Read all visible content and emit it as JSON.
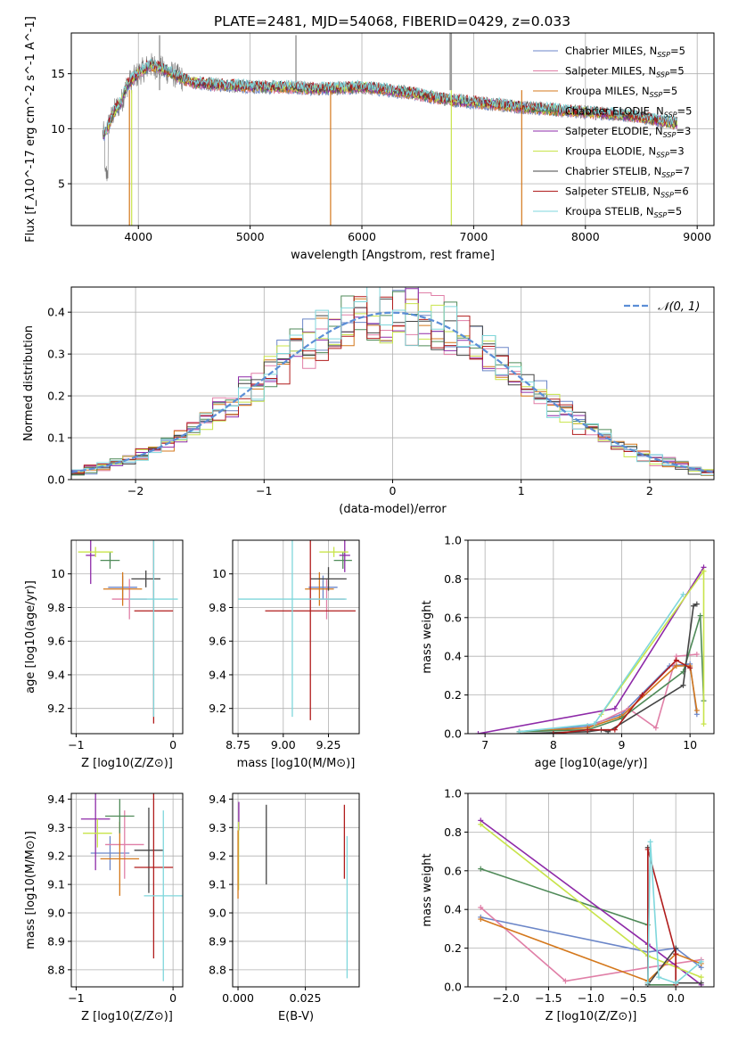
{
  "title": "PLATE=2481, MJD=54068, FIBERID=0429, z=0.033",
  "colors": {
    "chabrier_miles": "#6b86c8",
    "salpeter_miles": "#e07fa7",
    "kroupa_miles": "#d4781c",
    "chabrier_elodie": "#4f8a58",
    "salpeter_elodie": "#8e2aa8",
    "kroupa_elodie": "#c8e44a",
    "chabrier_stelib": "#444444",
    "salpeter_stelib": "#b01c1c",
    "kroupa_stelib": "#7fd7dc",
    "gauss": "#5b8ed6",
    "grid": "#b0b0b0"
  },
  "legend_spectrum": [
    {
      "name": "Chabrier MILES",
      "n": "5",
      "color_key": "chabrier_miles"
    },
    {
      "name": "Salpeter MILES",
      "n": "5",
      "color_key": "salpeter_miles"
    },
    {
      "name": "Kroupa MILES",
      "n": "5",
      "color_key": "kroupa_miles"
    },
    {
      "name": "Chabrier ELODIE",
      "n": "5",
      "color_key": "chabrier_elodie"
    },
    {
      "name": "Salpeter ELODIE",
      "n": "3",
      "color_key": "salpeter_elodie"
    },
    {
      "name": "Kroupa ELODIE",
      "n": "3",
      "color_key": "kroupa_elodie"
    },
    {
      "name": "Chabrier STELIB",
      "n": "7",
      "color_key": "chabrier_stelib"
    },
    {
      "name": "Salpeter STELIB",
      "n": "6",
      "color_key": "salpeter_stelib"
    },
    {
      "name": "Kroupa STELIB",
      "n": "5",
      "color_key": "kroupa_stelib"
    }
  ],
  "chart_data": [
    {
      "id": "spectrum",
      "type": "line",
      "xlabel": "wavelength [Angstrom, rest frame]",
      "ylabel": "Flux [f_λ10^-17 erg cm^-2 s^-1 A^-1]",
      "xlim": [
        3400,
        9150
      ],
      "ylim": [
        1.2,
        18.7
      ],
      "xticks": [
        4000,
        5000,
        6000,
        7000,
        8000,
        9000
      ],
      "yticks": [
        5,
        10,
        15
      ],
      "continuum": {
        "x": [
          3700,
          3780,
          3850,
          3900,
          3950,
          4000,
          4100,
          4200,
          4300,
          4400,
          4500,
          4700,
          5000,
          5300,
          5600,
          6000,
          6400,
          6800,
          7200,
          7600,
          8000,
          8400,
          8800
        ],
        "y": [
          9.5,
          11.5,
          12.5,
          14.0,
          14.5,
          15.0,
          15.8,
          15.5,
          15.0,
          14.5,
          14.2,
          14.0,
          13.8,
          13.8,
          13.6,
          13.8,
          13.3,
          12.6,
          12.2,
          11.8,
          11.5,
          11.2,
          10.5
        ]
      }
    },
    {
      "id": "residual_hist",
      "type": "bar",
      "xlabel": "(data-model)/error",
      "ylabel": "Normed distribution",
      "xlim": [
        -2.5,
        2.5
      ],
      "ylim": [
        0,
        0.46
      ],
      "xticks": [
        -2,
        -1,
        0,
        1,
        2
      ],
      "yticks": [
        0.0,
        0.1,
        0.2,
        0.3,
        0.4
      ],
      "legend": "𝒩(0, 1)",
      "bin_width": 0.1
    },
    {
      "id": "age_vs_Z",
      "type": "scatter",
      "xlabel": "Z [log10(Z/Z⊙)]",
      "ylabel": "age  [log10(age/yr)]",
      "xlim": [
        -1.05,
        0.1
      ],
      "ylim": [
        9.05,
        10.2
      ],
      "xticks": [
        -1,
        0
      ],
      "yticks": [
        9.2,
        9.4,
        9.6,
        9.8,
        10.0
      ],
      "points": [
        {
          "series": "chabrier_miles",
          "x": -0.52,
          "y": 9.92,
          "xerr": 0.15,
          "yerr": 0.07
        },
        {
          "series": "salpeter_miles",
          "x": -0.45,
          "y": 9.85,
          "xerr": 0.18,
          "yerr": 0.12
        },
        {
          "series": "kroupa_miles",
          "x": -0.52,
          "y": 9.91,
          "xerr": 0.2,
          "yerr": 0.1
        },
        {
          "series": "chabrier_elodie",
          "x": -0.65,
          "y": 10.08,
          "xerr": 0.1,
          "yerr": 0.05
        },
        {
          "series": "salpeter_elodie",
          "x": -0.85,
          "y": 10.11,
          "xerr": 0.05,
          "yerr": 0.17
        },
        {
          "series": "kroupa_elodie",
          "x": -0.8,
          "y": 10.13,
          "xerr": 0.18,
          "yerr": 0.03
        },
        {
          "series": "chabrier_stelib",
          "x": -0.28,
          "y": 9.97,
          "xerr": 0.15,
          "yerr": 0.05
        },
        {
          "series": "salpeter_stelib",
          "x": -0.2,
          "y": 9.78,
          "xerr": 0.2,
          "yerr": 0.67
        },
        {
          "series": "kroupa_stelib",
          "x": -0.2,
          "y": 9.85,
          "xerr": 0.25,
          "yerr": 0.7
        }
      ]
    },
    {
      "id": "age_vs_mass",
      "type": "scatter",
      "xlabel": "mass [log10(M/M⊙)]",
      "ylabel": "",
      "xlim": [
        8.72,
        9.42
      ],
      "ylim": [
        9.05,
        10.2
      ],
      "xticks": [
        8.75,
        9.0,
        9.25
      ],
      "xticklabels": [
        "8.75",
        "9.00",
        "9.25"
      ],
      "yticks": [
        9.2,
        9.4,
        9.6,
        9.8,
        10.0
      ],
      "points": [
        {
          "series": "chabrier_miles",
          "x": 9.22,
          "y": 9.92,
          "xerr": 0.08,
          "yerr": 0.07
        },
        {
          "series": "salpeter_miles",
          "x": 9.24,
          "y": 9.85,
          "xerr": 0.1,
          "yerr": 0.12
        },
        {
          "series": "kroupa_miles",
          "x": 9.2,
          "y": 9.91,
          "xerr": 0.08,
          "yerr": 0.1
        },
        {
          "series": "chabrier_elodie",
          "x": 9.33,
          "y": 10.08,
          "xerr": 0.05,
          "yerr": 0.05
        },
        {
          "series": "salpeter_elodie",
          "x": 9.34,
          "y": 10.11,
          "xerr": 0.03,
          "yerr": 0.1
        },
        {
          "series": "kroupa_elodie",
          "x": 9.28,
          "y": 10.13,
          "xerr": 0.08,
          "yerr": 0.03
        },
        {
          "series": "chabrier_stelib",
          "x": 9.25,
          "y": 9.97,
          "xerr": 0.1,
          "yerr": 0.07
        },
        {
          "series": "salpeter_stelib",
          "x": 9.15,
          "y": 9.78,
          "xerr": 0.25,
          "yerr": 0.65
        },
        {
          "series": "kroupa_stelib",
          "x": 9.05,
          "y": 9.85,
          "xerr": 0.3,
          "yerr": 0.7
        }
      ]
    },
    {
      "id": "mass_weight_vs_age",
      "type": "line",
      "xlabel": "age  [log10(age/yr)]",
      "ylabel": "mass weight",
      "xlim": [
        6.75,
        10.35
      ],
      "ylim": [
        0,
        1.0
      ],
      "xticks": [
        7,
        8,
        9,
        10
      ],
      "yticks": [
        0.0,
        0.2,
        0.4,
        0.6,
        0.8,
        1.0
      ],
      "series": [
        {
          "name": "Chabrier MILES",
          "key": "chabrier_miles",
          "x": [
            7.5,
            8.5,
            9.0,
            9.7,
            10.0,
            10.1
          ],
          "y": [
            0.01,
            0.04,
            0.1,
            0.35,
            0.36,
            0.1
          ]
        },
        {
          "name": "Salpeter MILES",
          "key": "salpeter_miles",
          "x": [
            7.5,
            8.5,
            9.1,
            9.5,
            9.8,
            10.1
          ],
          "y": [
            0.01,
            0.03,
            0.13,
            0.03,
            0.4,
            0.41
          ]
        },
        {
          "name": "Kroupa MILES",
          "key": "kroupa_miles",
          "x": [
            7.5,
            8.5,
            9.0,
            9.8,
            10.0,
            10.1
          ],
          "y": [
            0.01,
            0.03,
            0.09,
            0.35,
            0.35,
            0.12
          ]
        },
        {
          "name": "Chabrier ELODIE",
          "key": "chabrier_elodie",
          "x": [
            7.5,
            8.5,
            9.0,
            9.9,
            10.15,
            10.2
          ],
          "y": [
            0.01,
            0.02,
            0.08,
            0.32,
            0.61,
            0.17
          ]
        },
        {
          "name": "Salpeter ELODIE",
          "key": "salpeter_elodie",
          "x": [
            6.9,
            8.9,
            10.2
          ],
          "y": [
            0.0,
            0.13,
            0.86
          ]
        },
        {
          "name": "Kroupa ELODIE",
          "key": "kroupa_elodie",
          "x": [
            8.7,
            10.2,
            10.2
          ],
          "y": [
            0.1,
            0.84,
            0.05
          ]
        },
        {
          "name": "Chabrier STELIB",
          "key": "chabrier_stelib",
          "x": [
            7.5,
            8.5,
            8.7,
            8.8,
            9.9,
            10.05,
            10.1
          ],
          "y": [
            0.0,
            0.01,
            0.02,
            0.01,
            0.25,
            0.66,
            0.67
          ]
        },
        {
          "name": "Salpeter STELIB",
          "key": "salpeter_stelib",
          "x": [
            8.0,
            8.5,
            8.9,
            9.3,
            9.8,
            10.0
          ],
          "y": [
            0.0,
            0.02,
            0.02,
            0.2,
            0.38,
            0.34
          ]
        },
        {
          "name": "Kroupa STELIB",
          "key": "kroupa_stelib",
          "x": [
            7.5,
            8.6,
            9.9
          ],
          "y": [
            0.01,
            0.05,
            0.72
          ]
        }
      ]
    },
    {
      "id": "mass_vs_Z",
      "type": "scatter",
      "xlabel": "Z [log10(Z/Z⊙)]",
      "ylabel": "mass [log10(M/M⊙)]",
      "xlim": [
        -1.05,
        0.1
      ],
      "ylim": [
        8.74,
        9.42
      ],
      "xticks": [
        -1,
        0
      ],
      "yticks": [
        8.8,
        8.9,
        9.0,
        9.1,
        9.2,
        9.3,
        9.4
      ],
      "points": [
        {
          "series": "chabrier_miles",
          "x": -0.65,
          "y": 9.21,
          "xerr": 0.2,
          "yerr": 0.06
        },
        {
          "series": "salpeter_miles",
          "x": -0.5,
          "y": 9.24,
          "xerr": 0.2,
          "yerr": 0.12
        },
        {
          "series": "kroupa_miles",
          "x": -0.55,
          "y": 9.19,
          "xerr": 0.2,
          "yerr": 0.13
        },
        {
          "series": "chabrier_elodie",
          "x": -0.55,
          "y": 9.34,
          "xerr": 0.15,
          "yerr": 0.06
        },
        {
          "series": "salpeter_elodie",
          "x": -0.8,
          "y": 9.33,
          "xerr": 0.15,
          "yerr": 0.18
        },
        {
          "series": "kroupa_elodie",
          "x": -0.78,
          "y": 9.28,
          "xerr": 0.15,
          "yerr": 0.05
        },
        {
          "series": "chabrier_stelib",
          "x": -0.25,
          "y": 9.22,
          "xerr": 0.15,
          "yerr": 0.15
        },
        {
          "series": "salpeter_stelib",
          "x": -0.2,
          "y": 9.16,
          "xerr": 0.2,
          "yerr": 0.32
        },
        {
          "series": "kroupa_stelib",
          "x": -0.1,
          "y": 9.06,
          "xerr": 0.2,
          "yerr": 0.3
        }
      ]
    },
    {
      "id": "mass_vs_ebv",
      "type": "scatter",
      "xlabel": "E(B-V)",
      "ylabel": "",
      "xlim": [
        -0.002,
        0.045
      ],
      "ylim": [
        8.74,
        9.42
      ],
      "xticks": [
        0.0,
        0.025
      ],
      "xticklabels": [
        "0.000",
        "0.025"
      ],
      "yticks": [
        8.8,
        8.9,
        9.0,
        9.1,
        9.2,
        9.3,
        9.4
      ],
      "points": [
        {
          "series": "salpeter_elodie",
          "x": 0.0003,
          "y": 9.34,
          "xerr": 0,
          "yerr": 0.05
        },
        {
          "series": "kroupa_elodie",
          "x": 0.0002,
          "y": 9.2,
          "xerr": 0,
          "yerr": 0.12
        },
        {
          "series": "kroupa_miles",
          "x": 0.0,
          "y": 9.17,
          "xerr": 0,
          "yerr": 0.12
        },
        {
          "series": "chabrier_stelib",
          "x": 0.0105,
          "y": 9.24,
          "xerr": 0,
          "yerr": 0.14
        },
        {
          "series": "salpeter_stelib",
          "x": 0.0395,
          "y": 9.25,
          "xerr": 0,
          "yerr": 0.13
        },
        {
          "series": "kroupa_stelib",
          "x": 0.0405,
          "y": 9.02,
          "xerr": 0,
          "yerr": 0.25
        }
      ]
    },
    {
      "id": "mass_weight_vs_Z",
      "type": "line",
      "xlabel": "Z [log10(Z/Z⊙)]",
      "ylabel": "mass weight",
      "xlim": [
        -2.45,
        0.45
      ],
      "ylim": [
        0,
        1.0
      ],
      "xticks": [
        -2.0,
        -1.5,
        -1.0,
        -0.5,
        0.0
      ],
      "xticklabels": [
        "−2.0",
        "−1.5",
        "−1.0",
        "−0.5",
        "0.0"
      ],
      "yticks": [
        0.0,
        0.2,
        0.4,
        0.6,
        0.8,
        1.0
      ],
      "series": [
        {
          "name": "Chabrier MILES",
          "key": "chabrier_miles",
          "x": [
            -2.3,
            -0.33,
            0.0,
            0.3
          ],
          "y": [
            0.36,
            0.18,
            0.2,
            0.1
          ]
        },
        {
          "name": "Salpeter MILES",
          "key": "salpeter_miles",
          "x": [
            -2.3,
            -1.3,
            -0.33,
            0.3
          ],
          "y": [
            0.41,
            0.03,
            0.1,
            0.14
          ]
        },
        {
          "name": "Kroupa MILES",
          "key": "kroupa_miles",
          "x": [
            -2.3,
            -0.33,
            0.0,
            0.3
          ],
          "y": [
            0.35,
            0.03,
            0.17,
            0.12
          ]
        },
        {
          "name": "Chabrier ELODIE",
          "key": "chabrier_elodie",
          "x": [
            -2.3,
            -0.33,
            -0.33,
            0.0
          ],
          "y": [
            0.61,
            0.32,
            0.01,
            0.01
          ]
        },
        {
          "name": "Salpeter ELODIE",
          "key": "salpeter_elodie",
          "x": [
            -2.3,
            -0.33,
            0.3
          ],
          "y": [
            0.86,
            0.22,
            0.01
          ]
        },
        {
          "name": "Kroupa ELODIE",
          "key": "kroupa_elodie",
          "x": [
            -2.3,
            -0.33,
            0.3
          ],
          "y": [
            0.84,
            0.16,
            0.05
          ]
        },
        {
          "name": "Chabrier STELIB",
          "key": "chabrier_stelib",
          "x": [
            -0.33,
            -0.33,
            0.0,
            0.0,
            0.3
          ],
          "y": [
            0.72,
            0.01,
            0.2,
            0.02,
            0.02
          ]
        },
        {
          "name": "Salpeter STELIB",
          "key": "salpeter_stelib",
          "x": [
            -0.33,
            -0.33,
            0.0,
            0.0
          ],
          "y": [
            0.02,
            0.71,
            0.17,
            0.01
          ]
        },
        {
          "name": "Kroupa STELIB",
          "key": "kroupa_stelib",
          "x": [
            -0.33,
            -0.3,
            -0.2,
            0.0,
            0.3
          ],
          "y": [
            0.02,
            0.75,
            0.05,
            0.02,
            0.13
          ]
        }
      ]
    }
  ]
}
